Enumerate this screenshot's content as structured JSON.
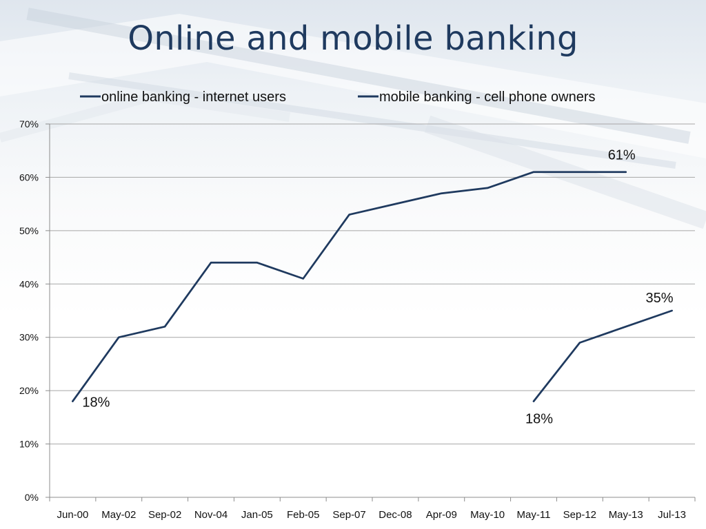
{
  "slide": {
    "title": "Online and mobile banking"
  },
  "chart_data": {
    "type": "line",
    "title": "",
    "xlabel": "",
    "ylabel": "",
    "categories": [
      "Jun-00",
      "May-02",
      "Sep-02",
      "Nov-04",
      "Jan-05",
      "Feb-05",
      "Sep-07",
      "Dec-08",
      "Apr-09",
      "May-10",
      "May-11",
      "Sep-12",
      "May-13",
      "Jul-13"
    ],
    "series": [
      {
        "name": "online banking - internet users",
        "values": [
          18,
          30,
          32,
          44,
          44,
          41,
          53,
          55,
          57,
          58,
          61,
          61,
          61,
          null
        ],
        "color": "#1f3a5f"
      },
      {
        "name": "mobile banking - cell phone owners",
        "values": [
          null,
          null,
          null,
          null,
          null,
          null,
          null,
          null,
          null,
          null,
          18,
          29,
          32,
          35
        ],
        "color": "#1f3a5f"
      }
    ],
    "ylim": [
      0,
      70
    ],
    "yticks": [
      "0%",
      "10%",
      "20%",
      "30%",
      "40%",
      "50%",
      "60%",
      "70%"
    ],
    "grid": true,
    "legend_position": "top",
    "data_labels": [
      {
        "series": 0,
        "index": 0,
        "text": "18%"
      },
      {
        "series": 0,
        "index": 12,
        "text": "61%"
      },
      {
        "series": 1,
        "index": 10,
        "text": "18%"
      },
      {
        "series": 1,
        "index": 13,
        "text": "35%"
      }
    ]
  }
}
